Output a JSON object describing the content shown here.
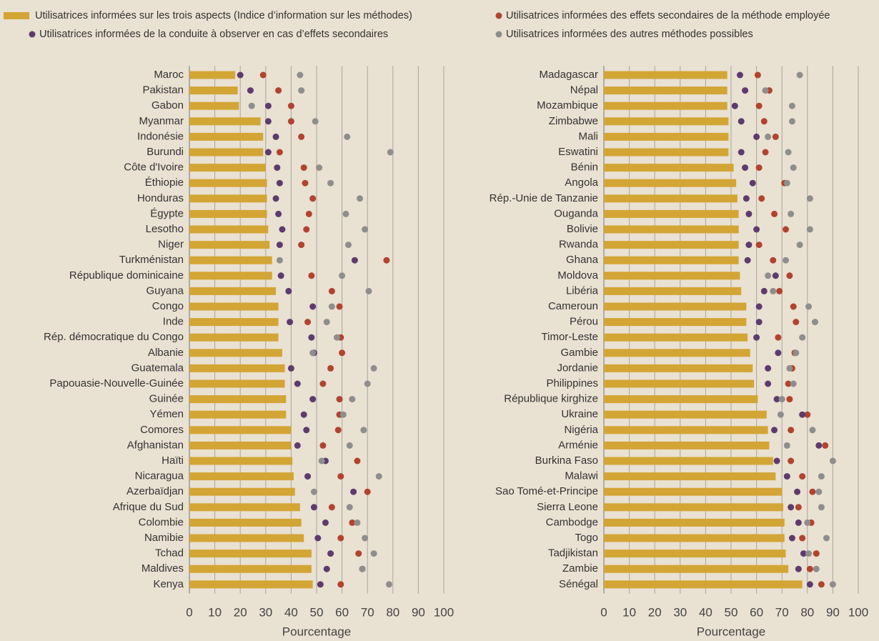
{
  "chart_data": [
    {
      "type": "bar",
      "x_label": "Pourcentage",
      "xlim": [
        0,
        100
      ],
      "xticks": [
        0,
        10,
        20,
        30,
        40,
        50,
        60,
        70,
        80,
        90,
        100
      ],
      "grid": true,
      "categories": [
        "Maroc",
        "Pakistan",
        "Gabon",
        "Myanmar",
        "Indonésie",
        "Burundi",
        "Côte d'Ivoire",
        "Éthiopie",
        "Honduras",
        "Égypte",
        "Lesotho",
        "Niger",
        "Turkménistan",
        "République dominicaine",
        "Guyana",
        "Congo",
        "Inde",
        "Rép. démocratique du Congo",
        "Albanie",
        "Guatemala",
        "Papouasie-Nouvelle-Guinée",
        "Guinée",
        "Yémen",
        "Comores",
        "Afghanistan",
        "Haïti",
        "Nicaragua",
        "Azerbaïdjan",
        "Afrique du Sud",
        "Colombie",
        "Namibie",
        "Tchad",
        "Maldives",
        "Kenya"
      ],
      "series": [
        {
          "name": "Utilisatrices informées sur les trois aspects (Indice d’information sur les méthodes)",
          "color": "#d3a535",
          "style": "bar",
          "values": [
            18,
            19,
            19.5,
            28,
            29,
            29,
            30,
            30.5,
            30.5,
            30.5,
            31,
            31.5,
            32.5,
            32.5,
            34,
            35,
            35,
            35,
            36.5,
            37.5,
            37.5,
            38,
            38,
            40,
            40,
            40.5,
            41,
            41.5,
            43.5,
            44,
            45,
            48,
            48,
            48.5
          ]
        },
        {
          "name": "Utilisatrices informées des effets secondaires de la méthode employée",
          "color": "#b2432e",
          "style": "point",
          "values": [
            29,
            35,
            40,
            40,
            44,
            35.5,
            45,
            45.5,
            48.5,
            47,
            46,
            44,
            77.5,
            48,
            56,
            59,
            46.5,
            59.5,
            60,
            55.5,
            52.5,
            59,
            59,
            58.5,
            52.5,
            66,
            59.5,
            70,
            56,
            64,
            59.5,
            66.5,
            68,
            59.5
          ]
        },
        {
          "name": "Utilisatrices informées de la conduite à observer en cas d’effets secondaires",
          "color": "#5d3b6e",
          "style": "point",
          "values": [
            20,
            24,
            31,
            31,
            34,
            31,
            34.5,
            35.5,
            34,
            35,
            36.5,
            35.5,
            65,
            36,
            39,
            48.5,
            39.5,
            48,
            49,
            40,
            42.5,
            48.5,
            45,
            46,
            42.5,
            53.5,
            46.5,
            64.5,
            49,
            53.5,
            50.5,
            55.5,
            54,
            51.5
          ]
        },
        {
          "name": "Utilisatrices informées des autres méthodes possibles",
          "color": "#8e8e8c",
          "style": "point",
          "values": [
            43.5,
            44,
            24.5,
            49.5,
            62,
            79,
            51,
            55.5,
            67,
            61.5,
            69,
            62.5,
            35.5,
            60,
            70.5,
            56,
            54,
            58,
            48.5,
            72.5,
            70,
            64,
            60.5,
            68.5,
            63,
            52,
            74.5,
            49,
            63,
            66,
            69,
            72.5,
            68,
            78.5
          ]
        }
      ]
    },
    {
      "type": "bar",
      "x_label": "Pourcentage",
      "xlim": [
        0,
        100
      ],
      "xticks": [
        0,
        10,
        20,
        30,
        40,
        50,
        60,
        70,
        80,
        90,
        100
      ],
      "grid": true,
      "categories": [
        "Madagascar",
        "Népal",
        "Mozambique",
        "Zimbabwe",
        "Mali",
        "Eswatini",
        "Bénin",
        "Angola",
        "Rép.-Unie de Tanzanie",
        "Ouganda",
        "Bolivie",
        "Rwanda",
        "Ghana",
        "Moldova",
        "Libéria",
        "Cameroun",
        "Pérou",
        "Timor-Leste",
        "Gambie",
        "Jordanie",
        "Philippines",
        "République kirghize",
        "Ukraine",
        "Nigéria",
        "Arménie",
        "Burkina Faso",
        "Malawi",
        "Sao Tomé-et-Principe",
        "Sierra Leone",
        "Cambodge",
        "Togo",
        "Tadjikistan",
        "Zambie",
        "Sénégal"
      ],
      "series": [
        {
          "name": "Utilisatrices informées sur les trois aspects (Indice d’information sur les méthodes)",
          "color": "#d3a535",
          "style": "bar",
          "values": [
            48.5,
            48.5,
            48.5,
            49,
            49,
            49,
            51,
            52,
            52.5,
            53,
            53,
            53,
            53,
            53.5,
            54,
            56,
            56,
            56.5,
            57.5,
            58.5,
            59,
            60.5,
            64,
            64.5,
            65,
            66.5,
            67.5,
            70,
            70.5,
            71,
            71,
            71.5,
            72.5,
            78
          ]
        },
        {
          "name": "Utilisatrices informées des effets secondaires de la méthode employée",
          "color": "#b2432e",
          "style": "point",
          "values": [
            60.5,
            65,
            61,
            63,
            67.5,
            63.5,
            61,
            71,
            62,
            67,
            71.5,
            61,
            66.5,
            73,
            69,
            74.5,
            75.5,
            68.5,
            75,
            74,
            72.5,
            73,
            80,
            73.5,
            87,
            73.5,
            78,
            82,
            76.5,
            81.5,
            78,
            83.5,
            81,
            85.5
          ]
        },
        {
          "name": "Utilisatrices informées de la conduite à observer en cas d’effets secondaires",
          "color": "#5d3b6e",
          "style": "point",
          "values": [
            53.5,
            55.5,
            51.5,
            54,
            60,
            54,
            55.5,
            58.5,
            56,
            57,
            60,
            57,
            56.5,
            67.5,
            63,
            61,
            61,
            60,
            68.5,
            64.5,
            64.5,
            68,
            78,
            67,
            84.5,
            68,
            72,
            76,
            73.5,
            76.5,
            74,
            78.5,
            76.5,
            81
          ]
        },
        {
          "name": "Utilisatrices informées des autres méthodes possibles",
          "color": "#8e8e8c",
          "style": "point",
          "values": [
            77,
            63.5,
            74,
            74,
            64.5,
            72.5,
            74.5,
            72,
            81,
            73.5,
            81,
            77,
            71.5,
            64.5,
            66.5,
            80.5,
            83,
            78,
            75.5,
            73,
            74.5,
            70,
            69.5,
            82,
            72,
            90,
            85.5,
            84.5,
            85.5,
            80,
            87.5,
            80.5,
            83.5,
            90
          ]
        }
      ]
    }
  ]
}
